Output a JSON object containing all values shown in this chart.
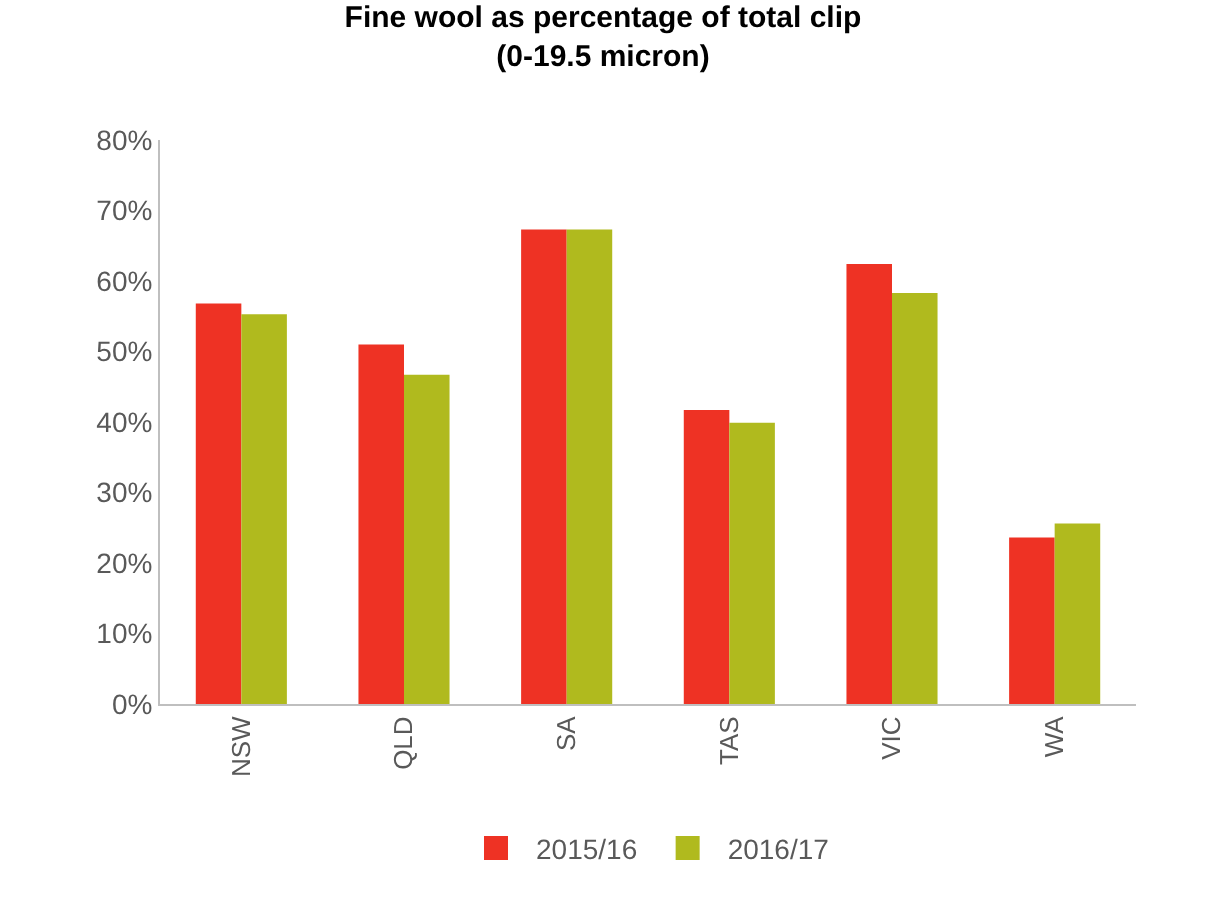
{
  "chart_data": {
    "type": "bar",
    "title": "Fine wool as percentage of total clip\n(0-19.5 micron)",
    "categories": [
      "NSW",
      "QLD",
      "SA",
      "TAS",
      "VIC",
      "WA"
    ],
    "series": [
      {
        "name": "2015/16",
        "color": "#ee3224",
        "values": [
          56.8,
          51.0,
          67.3,
          41.7,
          62.4,
          23.6
        ]
      },
      {
        "name": "2016/17",
        "color": "#b0ba1e",
        "values": [
          55.3,
          46.7,
          67.3,
          39.9,
          58.3,
          25.6
        ]
      }
    ],
    "ylim": [
      0,
      80
    ],
    "yticks": [
      {
        "value": 0,
        "label": "0%"
      },
      {
        "value": 10,
        "label": "10%"
      },
      {
        "value": 20,
        "label": "20%"
      },
      {
        "value": 30,
        "label": "30%"
      },
      {
        "value": 40,
        "label": "40%"
      },
      {
        "value": 50,
        "label": "50%"
      },
      {
        "value": 60,
        "label": "60%"
      },
      {
        "value": 70,
        "label": "70%"
      },
      {
        "value": 80,
        "label": "80%"
      }
    ],
    "grid": false,
    "legend": "bottom"
  }
}
